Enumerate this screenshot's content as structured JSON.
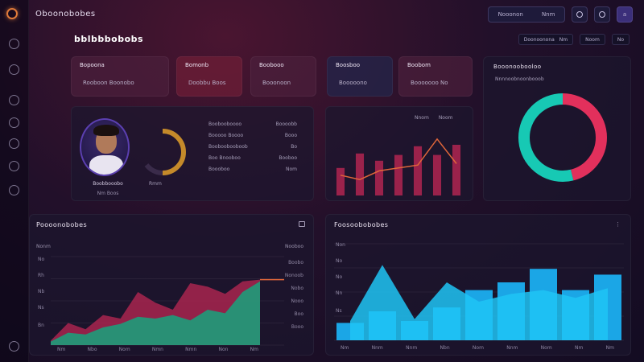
{
  "app": {
    "title": "Oboonobobes"
  },
  "page": {
    "title": "bblbbbobobs"
  },
  "header": {
    "search_text": "Nooonon",
    "search_ext": "Nnm",
    "mid_icon": "O",
    "right_icon": "O",
    "action_icon": "a"
  },
  "subheader": {
    "filter_a": "Doonoonona",
    "filter_a_ext": "Nm",
    "filter_b": "Noom",
    "filter_c": "No"
  },
  "sidebar": {
    "items": [
      {
        "icon": "circle-icon"
      },
      {
        "icon": "gauge-icon"
      },
      {
        "icon": "refresh-icon"
      },
      {
        "icon": "settings-icon"
      },
      {
        "icon": "globe-icon"
      },
      {
        "icon": "chat-icon"
      },
      {
        "icon": "power-icon"
      },
      {
        "icon": "help-icon"
      }
    ]
  },
  "stats": [
    {
      "label": "Bopoona",
      "value": "Rooboon  Boonobo"
    },
    {
      "label": "Bomonb",
      "value": "Doobbu  Boos"
    },
    {
      "label": "Boobooo",
      "value": "Booonoon"
    },
    {
      "label": "Boosboo",
      "value": "Booooono"
    },
    {
      "label": "Boobom",
      "value": "Booooooo  No"
    }
  ],
  "profile": {
    "name": "Boobbooobo",
    "role": "Nm  Boos",
    "gauge_label": "Rmm",
    "rows": [
      {
        "label": "Boobooboooo",
        "value": "Boooobb"
      },
      {
        "label": "Booooo Boooo",
        "value": "Booo"
      },
      {
        "label": "Booboobooboob",
        "value": "Bo"
      },
      {
        "label": "Boo Bnooboo",
        "value": "Booboo"
      },
      {
        "label": "Boooboo",
        "value": "Nom"
      }
    ]
  },
  "mini_chart": {
    "legend_a": "Nnom",
    "legend_b": "Noom"
  },
  "donut_panel": {
    "title": "Booonoobooloo",
    "subtitle": "Nnnnoobnoonbooob"
  },
  "area_panel": {
    "title": "Poooonobobes",
    "axis_left": "Nonm",
    "axis_right": "Nooboo",
    "ticks_y": [
      "No",
      "Rh",
      "Nb",
      "Ns",
      "Bn"
    ],
    "ticks_y_right": [
      "Boobo",
      "Nonoob",
      "Nobo",
      "Nooo",
      "Boo",
      "Booo"
    ],
    "ticks_x": [
      "Nm",
      "Nbo",
      "Nom",
      "Nmn",
      "Nmn",
      "Non",
      "Nm"
    ]
  },
  "bar_panel": {
    "title": "Foosoobobobes",
    "ticks_y": [
      "Non",
      "No",
      "No",
      "Nn",
      "Ns"
    ],
    "ticks_x": [
      "Nm",
      "Nnm",
      "Nnm",
      "Nbn",
      "Nom",
      "Nnm",
      "Nom",
      "Nm",
      "Nm"
    ]
  },
  "colors": {
    "accent_red": "#c22a58",
    "accent_teal": "#17c6b8",
    "accent_green": "#1e9c7a",
    "accent_blue": "#1fb4ef",
    "accent_orange": "#e07a3a"
  },
  "chart_data": [
    {
      "type": "bar",
      "categories": [
        "1",
        "2",
        "3",
        "4",
        "5",
        "6",
        "7"
      ],
      "values": [
        38,
        58,
        48,
        56,
        68,
        56,
        70
      ],
      "line": [
        28,
        22,
        34,
        38,
        42,
        78,
        44
      ],
      "ylim": [
        0,
        100
      ]
    },
    {
      "type": "pie",
      "values": [
        46,
        54
      ],
      "colors": [
        "#e2305c",
        "#17c9b4"
      ]
    },
    {
      "type": "area",
      "x": [
        0,
        1,
        2,
        3,
        4,
        5,
        6,
        7,
        8,
        9,
        10,
        11,
        12
      ],
      "series": [
        {
          "values": [
            5,
            25,
            18,
            34,
            30,
            60,
            48,
            40,
            70,
            66,
            58,
            72,
            74
          ]
        },
        {
          "values": [
            4,
            14,
            12,
            20,
            24,
            32,
            30,
            34,
            28,
            40,
            36,
            60,
            72
          ]
        }
      ],
      "ylim": [
        0,
        100
      ]
    },
    {
      "type": "bar",
      "categories": [
        "1",
        "2",
        "3",
        "4",
        "5",
        "6",
        "7",
        "8",
        "9"
      ],
      "values": [
        18,
        30,
        20,
        34,
        52,
        60,
        74,
        52,
        68
      ],
      "line": [
        20,
        78,
        22,
        60,
        40,
        48,
        52,
        44,
        54
      ],
      "ylim": [
        0,
        100
      ]
    }
  ]
}
